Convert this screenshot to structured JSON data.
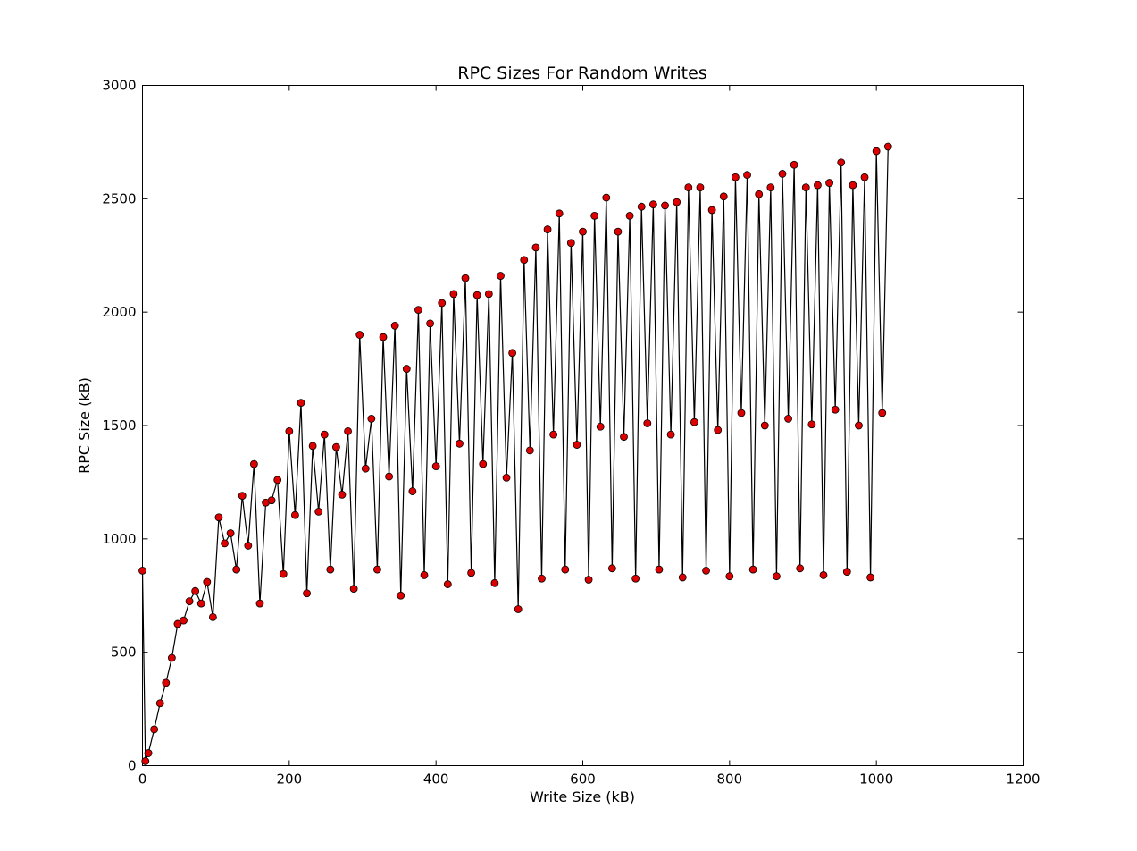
{
  "chart_data": {
    "type": "line",
    "title": "RPC Sizes For Random Writes",
    "xlabel": "Write Size (kB)",
    "ylabel": "RPC Size (kB)",
    "xlim": [
      0,
      1200
    ],
    "ylim": [
      0,
      3000
    ],
    "xticks": [
      0,
      200,
      400,
      600,
      800,
      1000,
      1200
    ],
    "yticks": [
      0,
      500,
      1000,
      1500,
      2000,
      2500,
      3000
    ],
    "grid": false,
    "legend": "none",
    "series": [
      {
        "line_color": "#000000",
        "marker_color": "#dd0000",
        "marker": "circle",
        "points": [
          [
            0,
            860
          ],
          [
            4,
            20
          ],
          [
            8,
            55
          ],
          [
            16,
            160
          ],
          [
            24,
            275
          ],
          [
            32,
            365
          ],
          [
            40,
            475
          ],
          [
            48,
            625
          ],
          [
            56,
            640
          ],
          [
            64,
            725
          ],
          [
            72,
            770
          ],
          [
            80,
            715
          ],
          [
            88,
            810
          ],
          [
            96,
            655
          ],
          [
            104,
            1095
          ],
          [
            112,
            980
          ],
          [
            120,
            1025
          ],
          [
            128,
            865
          ],
          [
            136,
            1190
          ],
          [
            144,
            970
          ],
          [
            152,
            1330
          ],
          [
            160,
            715
          ],
          [
            168,
            1160
          ],
          [
            176,
            1170
          ],
          [
            184,
            1260
          ],
          [
            192,
            845
          ],
          [
            200,
            1475
          ],
          [
            208,
            1105
          ],
          [
            216,
            1600
          ],
          [
            224,
            760
          ],
          [
            232,
            1410
          ],
          [
            240,
            1120
          ],
          [
            248,
            1460
          ],
          [
            256,
            865
          ],
          [
            264,
            1405
          ],
          [
            272,
            1195
          ],
          [
            280,
            1475
          ],
          [
            288,
            780
          ],
          [
            296,
            1900
          ],
          [
            304,
            1310
          ],
          [
            312,
            1530
          ],
          [
            320,
            865
          ],
          [
            328,
            1890
          ],
          [
            336,
            1275
          ],
          [
            344,
            1940
          ],
          [
            352,
            750
          ],
          [
            360,
            1750
          ],
          [
            368,
            1210
          ],
          [
            376,
            2010
          ],
          [
            384,
            840
          ],
          [
            392,
            1950
          ],
          [
            400,
            1320
          ],
          [
            408,
            2040
          ],
          [
            416,
            800
          ],
          [
            424,
            2080
          ],
          [
            432,
            1420
          ],
          [
            440,
            2150
          ],
          [
            448,
            850
          ],
          [
            456,
            2075
          ],
          [
            464,
            1330
          ],
          [
            472,
            2080
          ],
          [
            480,
            805
          ],
          [
            488,
            2160
          ],
          [
            496,
            1270
          ],
          [
            504,
            1820
          ],
          [
            512,
            690
          ],
          [
            520,
            2230
          ],
          [
            528,
            1390
          ],
          [
            536,
            2285
          ],
          [
            544,
            825
          ],
          [
            552,
            2365
          ],
          [
            560,
            1460
          ],
          [
            568,
            2435
          ],
          [
            576,
            865
          ],
          [
            584,
            2305
          ],
          [
            592,
            1415
          ],
          [
            600,
            2355
          ],
          [
            608,
            820
          ],
          [
            616,
            2425
          ],
          [
            624,
            1495
          ],
          [
            632,
            2505
          ],
          [
            640,
            870
          ],
          [
            648,
            2355
          ],
          [
            656,
            1450
          ],
          [
            664,
            2425
          ],
          [
            672,
            825
          ],
          [
            680,
            2465
          ],
          [
            688,
            1510
          ],
          [
            696,
            2475
          ],
          [
            704,
            865
          ],
          [
            712,
            2470
          ],
          [
            720,
            1460
          ],
          [
            728,
            2485
          ],
          [
            736,
            830
          ],
          [
            744,
            2550
          ],
          [
            752,
            1515
          ],
          [
            760,
            2550
          ],
          [
            768,
            860
          ],
          [
            776,
            2450
          ],
          [
            784,
            1480
          ],
          [
            792,
            2510
          ],
          [
            800,
            835
          ],
          [
            808,
            2595
          ],
          [
            816,
            1555
          ],
          [
            824,
            2605
          ],
          [
            832,
            865
          ],
          [
            840,
            2520
          ],
          [
            848,
            1500
          ],
          [
            856,
            2550
          ],
          [
            864,
            835
          ],
          [
            872,
            2610
          ],
          [
            880,
            1530
          ],
          [
            888,
            2650
          ],
          [
            896,
            870
          ],
          [
            904,
            2550
          ],
          [
            912,
            1505
          ],
          [
            920,
            2560
          ],
          [
            928,
            840
          ],
          [
            936,
            2570
          ],
          [
            944,
            1570
          ],
          [
            952,
            2660
          ],
          [
            960,
            855
          ],
          [
            968,
            2560
          ],
          [
            976,
            1500
          ],
          [
            984,
            2595
          ],
          [
            992,
            830
          ],
          [
            1000,
            2710
          ],
          [
            1008,
            1555
          ],
          [
            1016,
            2730
          ]
        ]
      }
    ]
  }
}
